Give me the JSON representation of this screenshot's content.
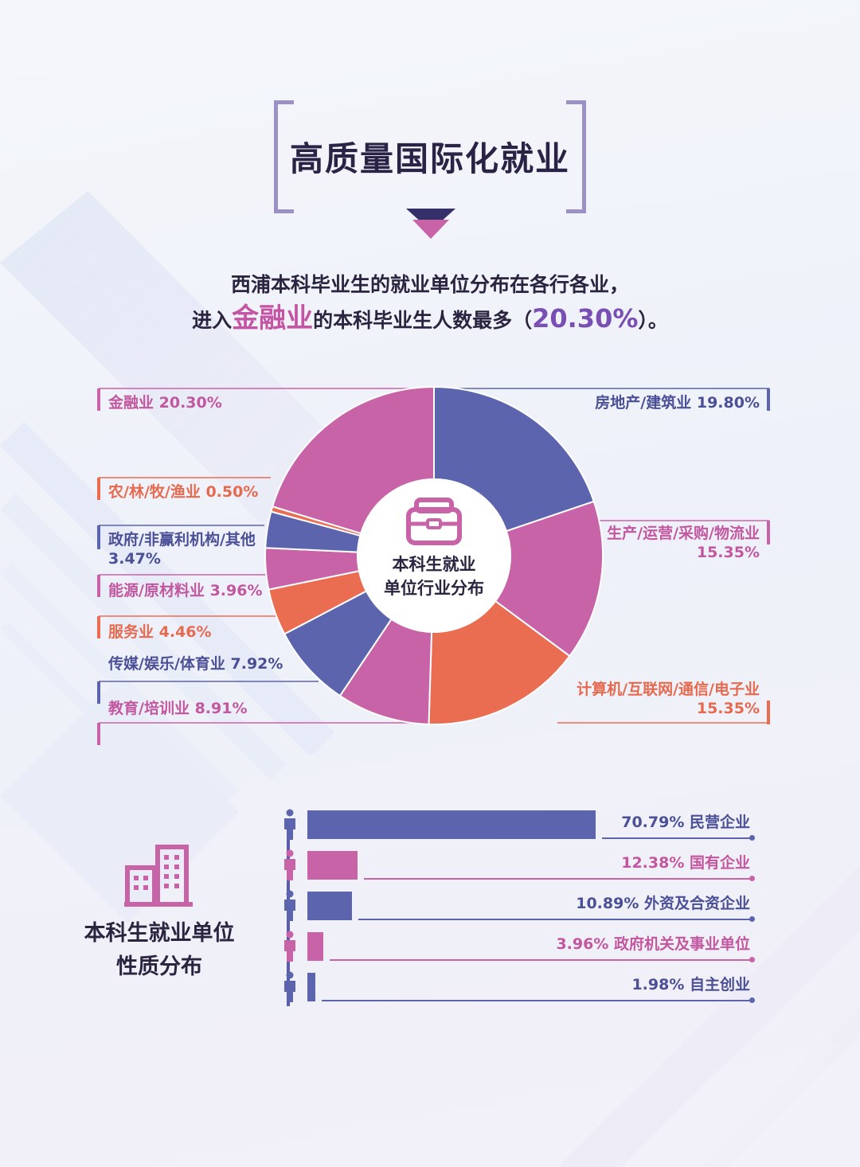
{
  "title": "高质量国际化就业",
  "intro": {
    "line1": "西浦本科毕业生的就业单位分布在各行各业，",
    "line2_pre": "进入",
    "line2_highlight": "金融业",
    "line2_mid": "的本科毕业生人数最多（",
    "line2_value": "20.30%",
    "line2_post": "）。"
  },
  "colors": {
    "blue": "#5c64ad",
    "pink": "#c863a8",
    "orange": "#ea6d52",
    "text": "#2b2440"
  },
  "chart_data": [
    {
      "type": "pie",
      "center_label_line1": "本科生就业",
      "center_label_line2": "单位行业分布",
      "center_icon": "briefcase-icon",
      "slices": [
        {
          "label": "房地产/建筑业",
          "value": 19.8,
          "value_text": "19.80%",
          "color": "#5c64ad"
        },
        {
          "label": "生产/运营/采购/物流业",
          "value": 15.35,
          "value_text": "15.35%",
          "color": "#c863a8"
        },
        {
          "label": "计算机/互联网/通信/电子业",
          "value": 15.35,
          "value_text": "15.35%",
          "color": "#ea6d52"
        },
        {
          "label": "教育/培训业",
          "value": 8.91,
          "value_text": "8.91%",
          "color": "#c863a8"
        },
        {
          "label": "传媒/娱乐/体育业",
          "value": 7.92,
          "value_text": "7.92%",
          "color": "#5c64ad"
        },
        {
          "label": "服务业",
          "value": 4.46,
          "value_text": "4.46%",
          "color": "#ea6d52"
        },
        {
          "label": "能源/原材料业",
          "value": 3.96,
          "value_text": "3.96%",
          "color": "#c863a8"
        },
        {
          "label": "政府/非赢利机构/其他",
          "value": 3.47,
          "value_text": "3.47%",
          "color": "#5c64ad"
        },
        {
          "label": "农/林/牧/渔业",
          "value": 0.5,
          "value_text": "0.50%",
          "color": "#ea6d52"
        },
        {
          "label": "金融业",
          "value": 20.3,
          "value_text": "20.30%",
          "color": "#c863a8"
        }
      ]
    },
    {
      "type": "bar",
      "title_line1": "本科生就业单位",
      "title_line2": "性质分布",
      "icon": "office-building-icon",
      "max_value": 100,
      "bars": [
        {
          "category": "民营企业",
          "value": 70.79,
          "value_text": "70.79%",
          "color": "#5c64ad"
        },
        {
          "category": "国有企业",
          "value": 12.38,
          "value_text": "12.38%",
          "color": "#c863a8"
        },
        {
          "category": "外资及合资企业",
          "value": 10.89,
          "value_text": "10.89%",
          "color": "#5c64ad"
        },
        {
          "category": "政府机关及事业单位",
          "value": 3.96,
          "value_text": "3.96%",
          "color": "#c863a8"
        },
        {
          "category": "自主创业",
          "value": 1.98,
          "value_text": "1.98%",
          "color": "#5c64ad"
        }
      ]
    }
  ]
}
